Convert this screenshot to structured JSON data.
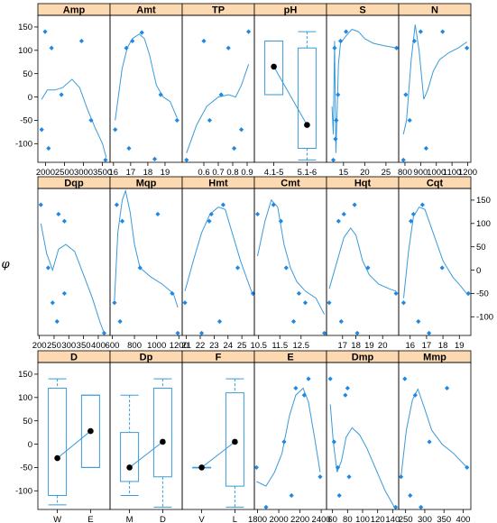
{
  "ylabel": "φ",
  "ylim": [
    -140,
    175
  ],
  "yticks": [
    -100,
    -50,
    0,
    50,
    100,
    150
  ],
  "colors": {
    "strip": "#fcd9b0",
    "point": "#1e88e5",
    "line": "#3a9ad9",
    "box": "#3a9ad9",
    "median": "#000000",
    "frame": "#000000"
  },
  "chart_data": [
    {
      "type": "scatter",
      "title": "Amp",
      "xlim": [
        1800,
        3700
      ],
      "xticks": [
        2000,
        2500,
        3000,
        3500
      ],
      "xticklabels": [
        "2000",
        "2500",
        "3000",
        "3500"
      ],
      "points": [
        [
          1900,
          -70
        ],
        [
          1990,
          140
        ],
        [
          2080,
          -110
        ],
        [
          2160,
          105
        ],
        [
          2420,
          5
        ],
        [
          2950,
          120
        ],
        [
          3200,
          -50
        ],
        [
          3580,
          -135
        ]
      ],
      "curve": [
        [
          1900,
          -5
        ],
        [
          2050,
          15
        ],
        [
          2250,
          15
        ],
        [
          2450,
          20
        ],
        [
          2700,
          38
        ],
        [
          2900,
          20
        ],
        [
          3100,
          -25
        ],
        [
          3300,
          -65
        ],
        [
          3500,
          -100
        ],
        [
          3600,
          -130
        ]
      ]
    },
    {
      "type": "scatter",
      "title": "Amt",
      "xlim": [
        15.8,
        20
      ],
      "xticks": [
        16,
        17,
        18,
        19
      ],
      "xticklabels": [
        "16",
        "17",
        "18",
        "19"
      ],
      "points": [
        [
          16.1,
          -70
        ],
        [
          16.75,
          105
        ],
        [
          16.9,
          -110
        ],
        [
          17.1,
          120
        ],
        [
          17.65,
          138
        ],
        [
          18.4,
          -133
        ],
        [
          18.75,
          5
        ],
        [
          19.7,
          -50
        ]
      ],
      "curve": [
        [
          16.1,
          -50
        ],
        [
          16.5,
          60
        ],
        [
          16.8,
          105
        ],
        [
          17.1,
          125
        ],
        [
          17.5,
          135
        ],
        [
          17.8,
          125
        ],
        [
          18.1,
          90
        ],
        [
          18.5,
          25
        ],
        [
          18.9,
          0
        ],
        [
          19.3,
          -10
        ],
        [
          19.7,
          -45
        ]
      ]
    },
    {
      "type": "scatter",
      "title": "TP",
      "xlim": [
        0.45,
        0.95
      ],
      "xticks": [
        0.6,
        0.7,
        0.8,
        0.9
      ],
      "xticklabels": [
        "0.6",
        "0.7",
        "0.8",
        "0.9"
      ],
      "points": [
        [
          0.48,
          -135
        ],
        [
          0.6,
          120
        ],
        [
          0.64,
          -50
        ],
        [
          0.72,
          5
        ],
        [
          0.77,
          105
        ],
        [
          0.81,
          -110
        ],
        [
          0.86,
          -70
        ],
        [
          0.91,
          140
        ]
      ],
      "curve": [
        [
          0.48,
          -120
        ],
        [
          0.55,
          -60
        ],
        [
          0.62,
          -20
        ],
        [
          0.7,
          0
        ],
        [
          0.77,
          5
        ],
        [
          0.82,
          0
        ],
        [
          0.86,
          25
        ],
        [
          0.91,
          70
        ]
      ]
    },
    {
      "type": "box",
      "title": "pH",
      "categories": [
        "4.1-5",
        "5.1-6"
      ],
      "boxes": [
        {
          "min": 5,
          "q1": 5,
          "median": 65,
          "q3": 120,
          "max": 120,
          "mean": 65
        },
        {
          "min": -135,
          "q1": -110,
          "median": -65,
          "q3": 105,
          "max": 140,
          "mean": -60
        }
      ]
    },
    {
      "type": "scatter",
      "title": "S",
      "xlim": [
        11,
        28
      ],
      "xticks": [
        15,
        20,
        25
      ],
      "xticklabels": [
        "15",
        "20",
        "25"
      ],
      "points": [
        [
          12.6,
          -135
        ],
        [
          12.9,
          105
        ],
        [
          13.1,
          -90
        ],
        [
          13.3,
          -50
        ],
        [
          13.7,
          5
        ],
        [
          14.3,
          120
        ],
        [
          15.6,
          140
        ],
        [
          27.5,
          105
        ]
      ],
      "curve": [
        [
          12.3,
          -20
        ],
        [
          12.6,
          -80
        ],
        [
          12.9,
          120
        ],
        [
          13.2,
          -120
        ],
        [
          13.5,
          -30
        ],
        [
          13.8,
          70
        ],
        [
          14.3,
          115
        ],
        [
          15.5,
          130
        ],
        [
          17,
          145
        ],
        [
          18.5,
          140
        ],
        [
          20,
          125
        ],
        [
          22,
          115
        ],
        [
          24.5,
          110
        ],
        [
          27.5,
          105
        ]
      ]
    },
    {
      "type": "scatter",
      "title": "N",
      "xlim": [
        760,
        1220
      ],
      "xticks": [
        800,
        900,
        1000,
        1100,
        1200
      ],
      "xticklabels": [
        "800",
        "900",
        "1000",
        "1100",
        "1200"
      ],
      "points": [
        [
          790,
          -135
        ],
        [
          805,
          5
        ],
        [
          830,
          -50
        ],
        [
          860,
          120
        ],
        [
          900,
          140
        ],
        [
          935,
          -110
        ],
        [
          1040,
          140
        ],
        [
          1195,
          105
        ]
      ],
      "curve": [
        [
          790,
          -80
        ],
        [
          810,
          -50
        ],
        [
          840,
          80
        ],
        [
          865,
          155
        ],
        [
          890,
          100
        ],
        [
          920,
          -5
        ],
        [
          945,
          15
        ],
        [
          980,
          55
        ],
        [
          1020,
          80
        ],
        [
          1080,
          95
        ],
        [
          1140,
          105
        ],
        [
          1195,
          118
        ]
      ]
    },
    {
      "type": "scatter",
      "title": "Dqp",
      "xlim": [
        195,
        440
      ],
      "xticks": [
        200,
        250,
        300,
        350,
        400
      ],
      "xticklabels": [
        "200",
        "250",
        "300",
        "350",
        "400"
      ],
      "points": [
        [
          205,
          140
        ],
        [
          230,
          5
        ],
        [
          245,
          -70
        ],
        [
          260,
          -110
        ],
        [
          265,
          120
        ],
        [
          285,
          105
        ],
        [
          285,
          -50
        ],
        [
          420,
          -135
        ]
      ],
      "curve": [
        [
          205,
          100
        ],
        [
          225,
          35
        ],
        [
          245,
          0
        ],
        [
          265,
          45
        ],
        [
          290,
          55
        ],
        [
          320,
          40
        ],
        [
          350,
          -10
        ],
        [
          380,
          -60
        ],
        [
          405,
          -110
        ],
        [
          420,
          -135
        ]
      ]
    },
    {
      "type": "scatter",
      "title": "Mqp",
      "xlim": [
        580,
        1230
      ],
      "xticks": [
        600,
        800,
        1000,
        1200
      ],
      "xticklabels": [
        "600",
        "800",
        "1000",
        "1200"
      ],
      "points": [
        [
          620,
          -70
        ],
        [
          640,
          140
        ],
        [
          670,
          -110
        ],
        [
          690,
          105
        ],
        [
          850,
          5
        ],
        [
          1010,
          120
        ],
        [
          1140,
          -50
        ],
        [
          1190,
          -135
        ]
      ],
      "curve": [
        [
          620,
          -65
        ],
        [
          650,
          80
        ],
        [
          690,
          150
        ],
        [
          720,
          170
        ],
        [
          760,
          125
        ],
        [
          800,
          55
        ],
        [
          850,
          5
        ],
        [
          950,
          -15
        ],
        [
          1050,
          -30
        ],
        [
          1150,
          -50
        ],
        [
          1190,
          -80
        ]
      ]
    },
    {
      "type": "scatter",
      "title": "Hmt",
      "xlim": [
        20.7,
        25.9
      ],
      "xticks": [
        21,
        22,
        23,
        24,
        25
      ],
      "xticklabels": [
        "21",
        "22",
        "23",
        "24",
        "25"
      ],
      "points": [
        [
          20.9,
          -70
        ],
        [
          22.1,
          -135
        ],
        [
          22.65,
          105
        ],
        [
          22.8,
          120
        ],
        [
          23.4,
          -110
        ],
        [
          23.65,
          140
        ],
        [
          24.7,
          5
        ],
        [
          25.8,
          -50
        ]
      ],
      "curve": [
        [
          20.9,
          -45
        ],
        [
          21.5,
          20
        ],
        [
          22.1,
          80
        ],
        [
          22.7,
          120
        ],
        [
          23.3,
          135
        ],
        [
          23.8,
          130
        ],
        [
          24.3,
          80
        ],
        [
          24.9,
          20
        ],
        [
          25.8,
          -55
        ]
      ]
    },
    {
      "type": "scatter",
      "title": "Cmt",
      "xlim": [
        10.3,
        13.7
      ],
      "xticks": [
        10.5,
        11.5,
        12.5
      ],
      "xticklabels": [
        "10.5",
        "11.5",
        "12.5"
      ],
      "points": [
        [
          10.45,
          120
        ],
        [
          11.2,
          140
        ],
        [
          11.55,
          105
        ],
        [
          11.8,
          5
        ],
        [
          12.15,
          -110
        ],
        [
          12.4,
          -50
        ],
        [
          12.7,
          -70
        ],
        [
          13.6,
          -135
        ]
      ],
      "curve": [
        [
          10.45,
          30
        ],
        [
          10.8,
          105
        ],
        [
          11.1,
          150
        ],
        [
          11.4,
          135
        ],
        [
          11.7,
          55
        ],
        [
          12,
          5
        ],
        [
          12.3,
          -25
        ],
        [
          12.7,
          -45
        ],
        [
          13.2,
          -60
        ],
        [
          13.6,
          -95
        ]
      ]
    },
    {
      "type": "scatter",
      "title": "Hqt",
      "xlim": [
        15.8,
        21.2
      ],
      "xticks": [
        17,
        18,
        19,
        20
      ],
      "xticklabels": [
        "17",
        "18",
        "19",
        "20"
      ],
      "points": [
        [
          16,
          -70
        ],
        [
          16.7,
          105
        ],
        [
          16.9,
          -110
        ],
        [
          17.1,
          120
        ],
        [
          17.9,
          140
        ],
        [
          18.1,
          -135
        ],
        [
          18.9,
          5
        ],
        [
          21,
          -50
        ]
      ],
      "curve": [
        [
          16,
          -40
        ],
        [
          16.6,
          20
        ],
        [
          17.1,
          70
        ],
        [
          17.6,
          90
        ],
        [
          18,
          75
        ],
        [
          18.5,
          20
        ],
        [
          19,
          -10
        ],
        [
          19.7,
          -30
        ],
        [
          20.5,
          -40
        ],
        [
          21,
          -45
        ]
      ]
    },
    {
      "type": "scatter",
      "title": "Cqt",
      "xlim": [
        15.3,
        19.7
      ],
      "xticks": [
        16,
        17,
        18,
        19
      ],
      "xticklabels": [
        "16",
        "17",
        "18",
        "19"
      ],
      "points": [
        [
          15.6,
          -70
        ],
        [
          16.05,
          105
        ],
        [
          16.2,
          120
        ],
        [
          16.5,
          -110
        ],
        [
          16.75,
          140
        ],
        [
          17.15,
          -135
        ],
        [
          17.95,
          5
        ],
        [
          19.55,
          -50
        ]
      ],
      "curve": [
        [
          15.6,
          -60
        ],
        [
          15.9,
          40
        ],
        [
          16.2,
          115
        ],
        [
          16.55,
          135
        ],
        [
          16.9,
          130
        ],
        [
          17.4,
          80
        ],
        [
          18,
          20
        ],
        [
          18.6,
          -15
        ],
        [
          19.1,
          -35
        ],
        [
          19.55,
          -55
        ]
      ]
    },
    {
      "type": "box",
      "title": "D",
      "categories": [
        "W",
        "E"
      ],
      "boxes": [
        {
          "min": -130,
          "q1": -110,
          "median": -30,
          "q3": 120,
          "max": 140,
          "mean": -30
        },
        {
          "min": -50,
          "q1": -50,
          "median": 30,
          "q3": 105,
          "max": 105,
          "mean": 28
        }
      ]
    },
    {
      "type": "box",
      "title": "Dp",
      "categories": [
        "M",
        "D"
      ],
      "boxes": [
        {
          "min": -110,
          "q1": -80,
          "median": -50,
          "q3": 25,
          "max": 105,
          "mean": -50
        },
        {
          "min": -135,
          "q1": -70,
          "median": 5,
          "q3": 120,
          "max": 140,
          "mean": 5
        }
      ]
    },
    {
      "type": "box",
      "title": "F",
      "categories": [
        "V",
        "L"
      ],
      "boxes": [
        {
          "min": -50,
          "q1": -50,
          "median": -50,
          "q3": -50,
          "max": -50,
          "mean": -50
        },
        {
          "min": -135,
          "q1": -90,
          "median": 5,
          "q3": 110,
          "max": 140,
          "mean": 5
        }
      ]
    },
    {
      "type": "scatter",
      "title": "E",
      "xlim": [
        1770,
        2450
      ],
      "xticks": [
        1800,
        2000,
        2200,
        2400
      ],
      "xticklabels": [
        "1800",
        "2000",
        "2200",
        "2400"
      ],
      "points": [
        [
          1790,
          -50
        ],
        [
          1880,
          -135
        ],
        [
          2050,
          5
        ],
        [
          2120,
          -110
        ],
        [
          2160,
          120
        ],
        [
          2240,
          105
        ],
        [
          2280,
          140
        ],
        [
          2390,
          -70
        ]
      ],
      "curve": [
        [
          1790,
          -80
        ],
        [
          1880,
          -90
        ],
        [
          1960,
          -60
        ],
        [
          2030,
          -20
        ],
        [
          2100,
          60
        ],
        [
          2160,
          105
        ],
        [
          2230,
          120
        ],
        [
          2280,
          90
        ],
        [
          2340,
          10
        ],
        [
          2390,
          -60
        ]
      ]
    },
    {
      "type": "scatter",
      "title": "Dmp",
      "xlim": [
        52,
        148
      ],
      "xticks": [
        60,
        80,
        100,
        120,
        140
      ],
      "xticklabels": [
        "60",
        "80",
        "100",
        "120",
        "140"
      ],
      "points": [
        [
          57,
          140
        ],
        [
          62,
          5
        ],
        [
          67,
          -50
        ],
        [
          69,
          -110
        ],
        [
          77,
          105
        ],
        [
          80,
          120
        ],
        [
          82,
          -70
        ],
        [
          144,
          -135
        ]
      ],
      "curve": [
        [
          57,
          85
        ],
        [
          61,
          5
        ],
        [
          66,
          -60
        ],
        [
          72,
          -35
        ],
        [
          78,
          15
        ],
        [
          86,
          35
        ],
        [
          96,
          20
        ],
        [
          106,
          -10
        ],
        [
          118,
          -55
        ],
        [
          130,
          -100
        ],
        [
          144,
          -140
        ]
      ]
    },
    {
      "type": "scatter",
      "title": "Mmp",
      "xlim": [
        232,
        420
      ],
      "xticks": [
        250,
        300,
        350,
        400
      ],
      "xticklabels": [
        "250",
        "300",
        "350",
        "400"
      ],
      "points": [
        [
          238,
          -70
        ],
        [
          248,
          140
        ],
        [
          262,
          -110
        ],
        [
          275,
          105
        ],
        [
          290,
          -135
        ],
        [
          312,
          5
        ],
        [
          358,
          120
        ],
        [
          410,
          -50
        ]
      ],
      "curve": [
        [
          238,
          -70
        ],
        [
          252,
          30
        ],
        [
          268,
          95
        ],
        [
          282,
          118
        ],
        [
          298,
          80
        ],
        [
          318,
          30
        ],
        [
          345,
          0
        ],
        [
          375,
          -20
        ],
        [
          410,
          -50
        ]
      ]
    }
  ]
}
